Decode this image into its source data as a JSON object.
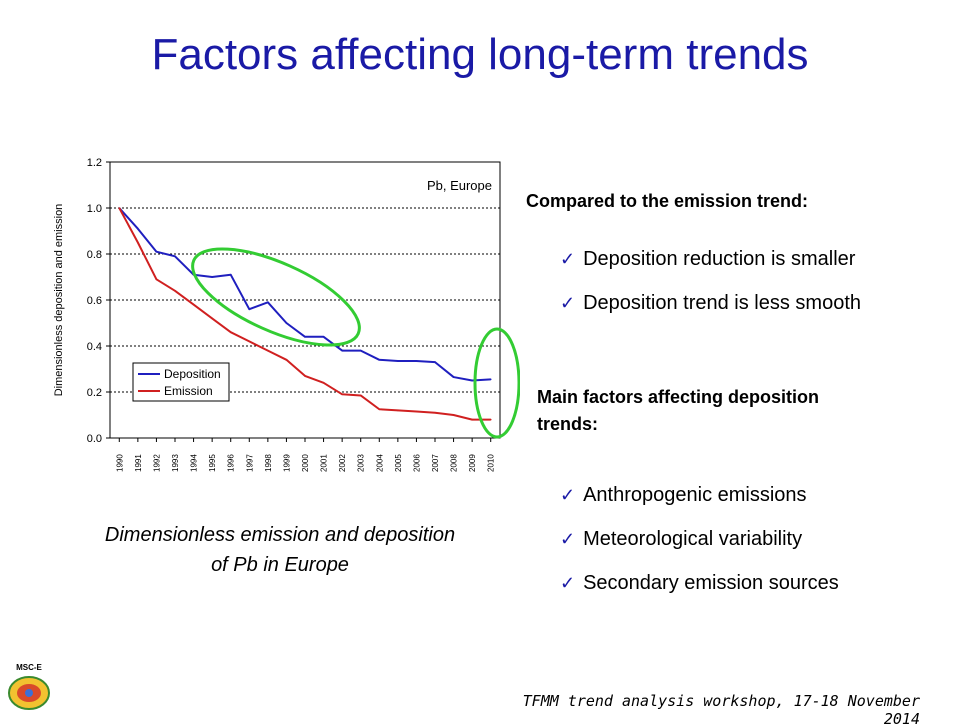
{
  "slide": {
    "title": "Factors affecting long-term trends",
    "caption_line1": "Dimensionless emission and deposition",
    "caption_line2": "of Pb in Europe",
    "compared_heading": "Compared to the emission trend:",
    "compared_items": [
      "Deposition reduction is smaller",
      "Deposition trend is less smooth"
    ],
    "factors_heading_line1": "Main factors affecting deposition",
    "factors_heading_line2": "trends:",
    "factors_items": [
      "Anthropogenic emissions",
      "Meteorological variability",
      "Secondary emission sources"
    ],
    "footer": "TFMM trend analysis workshop, 17-18 November 2014",
    "check_glyph": "✓",
    "accent_color": "#1a1aa6",
    "logo_label": "MSC-E"
  },
  "chart_data": {
    "type": "line",
    "annotation": "Pb, Europe",
    "ylabel": "Dimensionless deposition and emission",
    "xlabel": "",
    "categories": [
      "1990",
      "1991",
      "1992",
      "1993",
      "1994",
      "1995",
      "1996",
      "1997",
      "1998",
      "1999",
      "2000",
      "2001",
      "2002",
      "2003",
      "2004",
      "2005",
      "2006",
      "2007",
      "2008",
      "2009",
      "2010"
    ],
    "x_half_steps": [
      0,
      0.5,
      1,
      1.5,
      2,
      2.5,
      3,
      3.5,
      4,
      4.5,
      5,
      5.5,
      6,
      6.5,
      7,
      7.5,
      8,
      8.5,
      9,
      9.5,
      10,
      10.5,
      11,
      11.5,
      12,
      12.5,
      13,
      13.5,
      14,
      14.5,
      15,
      15.5,
      16,
      16.5,
      17,
      17.5,
      18,
      18.5,
      19,
      19.5,
      20
    ],
    "ylim": [
      0,
      1.2
    ],
    "yticks": [
      "0.0",
      "0.2",
      "0.4",
      "0.6",
      "0.8",
      "1.0",
      "1.2"
    ],
    "ytick_values": [
      0,
      0.2,
      0.4,
      0.6,
      0.8,
      1.0,
      1.2
    ],
    "grid": "horizontal dashed",
    "legend_position": "bottom-left",
    "series": [
      {
        "name": "Deposition",
        "color": "#1f1fbf",
        "x": [
          0,
          1,
          2,
          3,
          4,
          5,
          6,
          7,
          8,
          9,
          10,
          11,
          12,
          13,
          14,
          15,
          16,
          17,
          18,
          19,
          20
        ],
        "values": [
          1.0,
          0.91,
          0.81,
          0.79,
          0.71,
          0.7,
          0.71,
          0.56,
          0.59,
          0.5,
          0.44,
          0.44,
          0.38,
          0.38,
          0.34,
          0.335,
          0.335,
          0.33,
          0.265,
          0.25,
          0.255
        ]
      },
      {
        "name": "Emission",
        "color": "#d02020",
        "x": [
          0,
          1,
          2,
          3,
          4,
          5,
          6,
          7,
          8,
          9,
          10,
          11,
          12,
          13,
          14,
          15,
          16,
          17,
          18,
          19,
          20
        ],
        "values": [
          1.0,
          0.85,
          0.69,
          0.64,
          0.58,
          0.52,
          0.46,
          0.42,
          0.38,
          0.34,
          0.27,
          0.24,
          0.19,
          0.185,
          0.125,
          0.12,
          0.115,
          0.11,
          0.1,
          0.08,
          0.08
        ]
      }
    ],
    "highlights": [
      {
        "color": "#33cc33"
      },
      {
        "color": "#33cc33"
      }
    ]
  }
}
